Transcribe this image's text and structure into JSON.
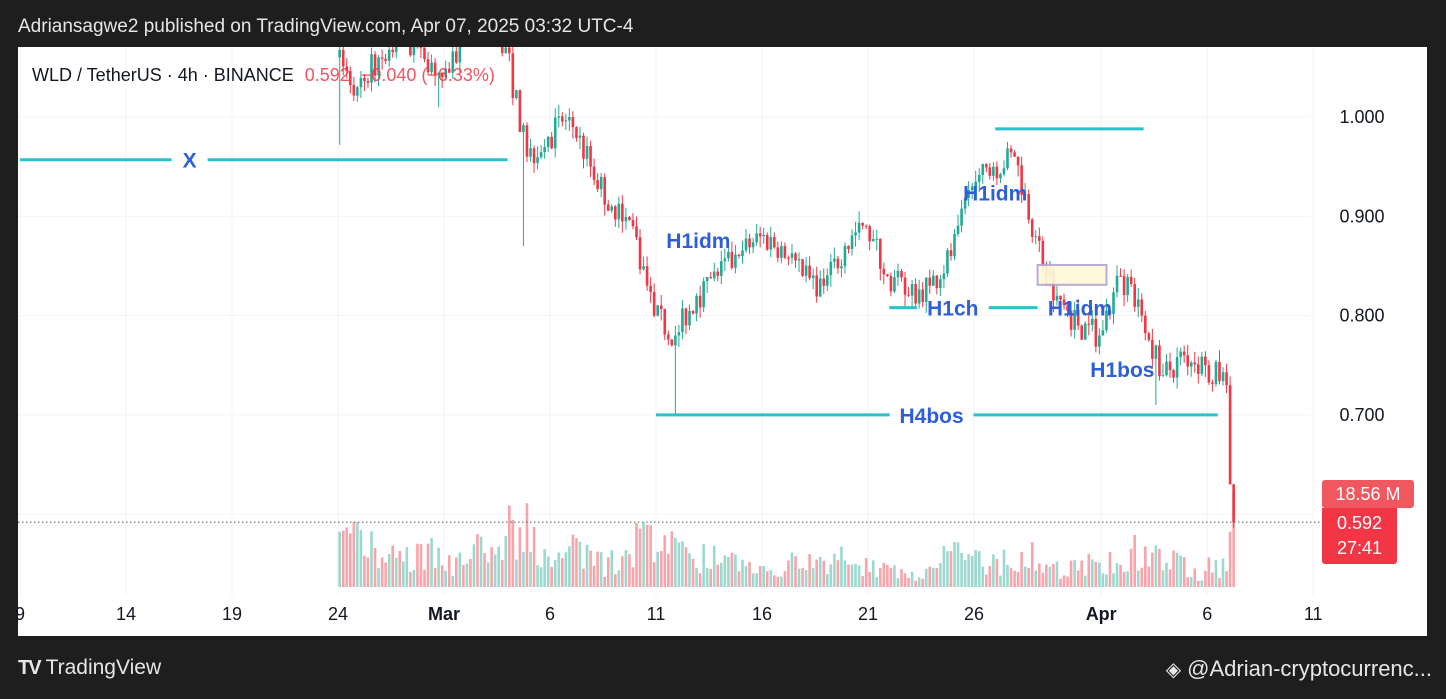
{
  "header": {
    "published": "Adriansagwe2 published on TradingView.com, Apr 07, 2025 03:32 UTC-4"
  },
  "legend": {
    "symbol": "WLD / TetherUS · 4h · BINANCE",
    "price": "0.592",
    "change": "−0.040 (−6.33%)"
  },
  "price_tags": {
    "volume": "18.56 M",
    "last_price": "0.592",
    "countdown": "27:41"
  },
  "footer": {
    "logo": "TradingView",
    "user": "@Adrian-cryptocurrenc..."
  },
  "colors": {
    "up": "#22ab94",
    "down": "#f23645",
    "annotation_line": "#2fbfca",
    "annotation_text": "#2f5fd8",
    "box_fill": "#fff8d6",
    "box_stroke": "#b3a3d3",
    "background": "#1e1e1e"
  },
  "chart_data": {
    "type": "candlestick",
    "interval": "4h",
    "ylim": [
      0.55,
      1.07
    ],
    "grid": true,
    "y_ticks": [
      "1.000",
      "0.900",
      "0.800",
      "0.700"
    ],
    "y_tick_values": [
      1.0,
      0.9,
      0.8,
      0.7
    ],
    "x_ticks": [
      {
        "label": "9",
        "date": "2025-02-09"
      },
      {
        "label": "14",
        "date": "2025-02-14"
      },
      {
        "label": "19",
        "date": "2025-02-19"
      },
      {
        "label": "24",
        "date": "2025-02-24"
      },
      {
        "label": "Mar",
        "date": "2025-03-01",
        "bold": true
      },
      {
        "label": "6",
        "date": "2025-03-06"
      },
      {
        "label": "11",
        "date": "2025-03-11"
      },
      {
        "label": "16",
        "date": "2025-03-16"
      },
      {
        "label": "21",
        "date": "2025-03-21"
      },
      {
        "label": "26",
        "date": "2025-03-26"
      },
      {
        "label": "Apr",
        "date": "2025-04-01",
        "bold": true
      },
      {
        "label": "6",
        "date": "2025-04-06"
      },
      {
        "label": "11",
        "date": "2025-04-11"
      }
    ],
    "daily": [
      {
        "date": "2025-02-23",
        "close": 1.06,
        "vol": 5
      },
      {
        "date": "2025-02-24",
        "close": 1.03,
        "low": 0.972,
        "vol": 9
      },
      {
        "date": "2025-02-25",
        "close": 1.06,
        "vol": 8
      },
      {
        "date": "2025-02-26",
        "close": 1.08,
        "vol": 6
      },
      {
        "date": "2025-02-27",
        "close": 1.07,
        "vol": 6
      },
      {
        "date": "2025-02-28",
        "close": 1.04,
        "low": 1.01,
        "vol": 7
      },
      {
        "date": "2025-03-01",
        "close": 1.08,
        "vol": 5
      },
      {
        "date": "2025-03-02",
        "close": 1.09,
        "vol": 7
      },
      {
        "date": "2025-03-03",
        "close": 1.07,
        "vol": 8
      },
      {
        "date": "2025-03-04",
        "close": 0.96,
        "low": 0.87,
        "vol": 11
      },
      {
        "date": "2025-03-05",
        "close": 0.98,
        "vol": 8
      },
      {
        "date": "2025-03-06",
        "close": 1.0,
        "vol": 6
      },
      {
        "date": "2025-03-07",
        "close": 0.95,
        "vol": 7
      },
      {
        "date": "2025-03-08",
        "close": 0.91,
        "vol": 5
      },
      {
        "date": "2025-03-09",
        "close": 0.89,
        "vol": 6
      },
      {
        "date": "2025-03-10",
        "close": 0.8,
        "vol": 9
      },
      {
        "date": "2025-03-11",
        "close": 0.78,
        "low": 0.7,
        "vol": 10
      },
      {
        "date": "2025-03-12",
        "close": 0.82,
        "vol": 7
      },
      {
        "date": "2025-03-13",
        "close": 0.84,
        "vol": 6
      },
      {
        "date": "2025-03-14",
        "close": 0.86,
        "vol": 5
      },
      {
        "date": "2025-03-15",
        "close": 0.88,
        "vol": 4
      },
      {
        "date": "2025-03-16",
        "close": 0.87,
        "vol": 4
      },
      {
        "date": "2025-03-17",
        "close": 0.84,
        "vol": 5
      },
      {
        "date": "2025-03-18",
        "close": 0.83,
        "vol": 5
      },
      {
        "date": "2025-03-19",
        "close": 0.87,
        "vol": 6
      },
      {
        "date": "2025-03-20",
        "close": 0.89,
        "vol": 5
      },
      {
        "date": "2025-03-21",
        "close": 0.84,
        "vol": 4
      },
      {
        "date": "2025-03-22",
        "close": 0.82,
        "vol": 3
      },
      {
        "date": "2025-03-23",
        "close": 0.83,
        "vol": 3
      },
      {
        "date": "2025-03-24",
        "close": 0.86,
        "vol": 7
      },
      {
        "date": "2025-03-25",
        "close": 0.93,
        "vol": 6
      },
      {
        "date": "2025-03-26",
        "close": 0.95,
        "vol": 5
      },
      {
        "date": "2025-03-27",
        "close": 0.96,
        "vol": 5
      },
      {
        "date": "2025-03-28",
        "close": 0.88,
        "vol": 6
      },
      {
        "date": "2025-03-29",
        "close": 0.82,
        "vol": 4
      },
      {
        "date": "2025-03-30",
        "close": 0.79,
        "vol": 4
      },
      {
        "date": "2025-03-31",
        "close": 0.78,
        "vol": 5
      },
      {
        "date": "2025-04-01",
        "close": 0.84,
        "vol": 6
      },
      {
        "date": "2025-04-02",
        "close": 0.8,
        "vol": 7
      },
      {
        "date": "2025-04-03",
        "close": 0.74,
        "low": 0.71,
        "vol": 6
      },
      {
        "date": "2025-04-04",
        "close": 0.76,
        "vol": 5
      },
      {
        "date": "2025-04-05",
        "close": 0.75,
        "vol": 3
      },
      {
        "date": "2025-04-06",
        "close": 0.73,
        "vol": 4
      },
      {
        "date": "2025-04-07",
        "close": 0.592,
        "vol": 18.56
      }
    ],
    "annotations": {
      "lines": [
        {
          "label": "X",
          "price": 0.957,
          "from": "2025-02-09",
          "to": "2025-03-04",
          "label_at": "2025-02-17"
        },
        {
          "label": "",
          "price": 0.988,
          "from": "2025-03-27",
          "to": "2025-04-03"
        },
        {
          "label": "H1ch",
          "price": 0.808,
          "from": "2025-03-22",
          "to": "2025-03-29",
          "label_at": "2025-03-25"
        },
        {
          "label": "H4bos",
          "price": 0.7,
          "from": "2025-03-11",
          "to": "2025-04-06T12:00",
          "label_at": "2025-03-24"
        }
      ],
      "labels": [
        {
          "text": "H1idm",
          "date": "2025-03-13",
          "price": 0.875
        },
        {
          "text": "H1idm",
          "date": "2025-03-27",
          "price": 0.923
        },
        {
          "text": "H1idm",
          "date": "2025-03-31",
          "price": 0.807
        },
        {
          "text": "H1bos",
          "date": "2025-04-02",
          "price": 0.745
        }
      ],
      "box": {
        "from": "2025-03-29",
        "to": "2025-04-01T06:00",
        "top": 0.851,
        "bottom": 0.831
      }
    }
  }
}
